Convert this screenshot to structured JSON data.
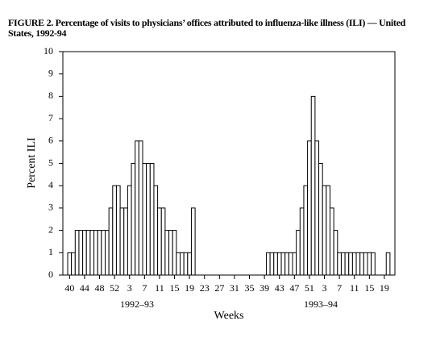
{
  "chart_data": {
    "type": "bar",
    "title": "FIGURE 2. Percentage of visits to physicians’ offices attributed to influenza-like illness (ILI) — United States, 1992-94",
    "y_label": "Percent ILI",
    "x_label": "Weeks",
    "x_groups": [
      "1992–93",
      "1993–94"
    ],
    "categories": [
      "40",
      null,
      null,
      null,
      "44",
      null,
      null,
      null,
      "48",
      null,
      null,
      null,
      "52",
      null,
      null,
      null,
      "3",
      null,
      null,
      null,
      "7",
      null,
      null,
      null,
      "11",
      null,
      null,
      null,
      "15",
      null,
      null,
      null,
      "19",
      null,
      null,
      null,
      "23",
      null,
      null,
      null,
      "27",
      null,
      null,
      null,
      "31",
      null,
      null,
      null,
      "35",
      null,
      null,
      null,
      "39",
      null,
      null,
      null,
      "43",
      null,
      null,
      null,
      "47",
      null,
      null,
      null,
      "51",
      null,
      null,
      null,
      "3",
      null,
      null,
      null,
      "7",
      null,
      null,
      null,
      "11",
      null,
      null,
      null,
      "15",
      null,
      null,
      null,
      "19",
      null
    ],
    "values": [
      1,
      1,
      2,
      2,
      2,
      2,
      2,
      2,
      2,
      2,
      2,
      3,
      4,
      4,
      3,
      3,
      4,
      5,
      6,
      6,
      5,
      5,
      5,
      4,
      3,
      3,
      2,
      2,
      2,
      1,
      1,
      1,
      1,
      3,
      null,
      null,
      null,
      null,
      null,
      null,
      null,
      null,
      null,
      null,
      null,
      null,
      null,
      null,
      null,
      null,
      null,
      null,
      null,
      1,
      1,
      1,
      1,
      1,
      1,
      1,
      1,
      2,
      3,
      4,
      6,
      8,
      6,
      5,
      4,
      4,
      3,
      2,
      1,
      1,
      1,
      1,
      1,
      1,
      1,
      1,
      1,
      1,
      null,
      null,
      null,
      1
    ],
    "color": "#ffffff",
    "edge_color": "#000000",
    "ylim": [
      0,
      10
    ],
    "yticks": [
      0,
      1,
      2,
      3,
      4,
      5,
      6,
      7,
      8,
      9,
      10
    ]
  }
}
